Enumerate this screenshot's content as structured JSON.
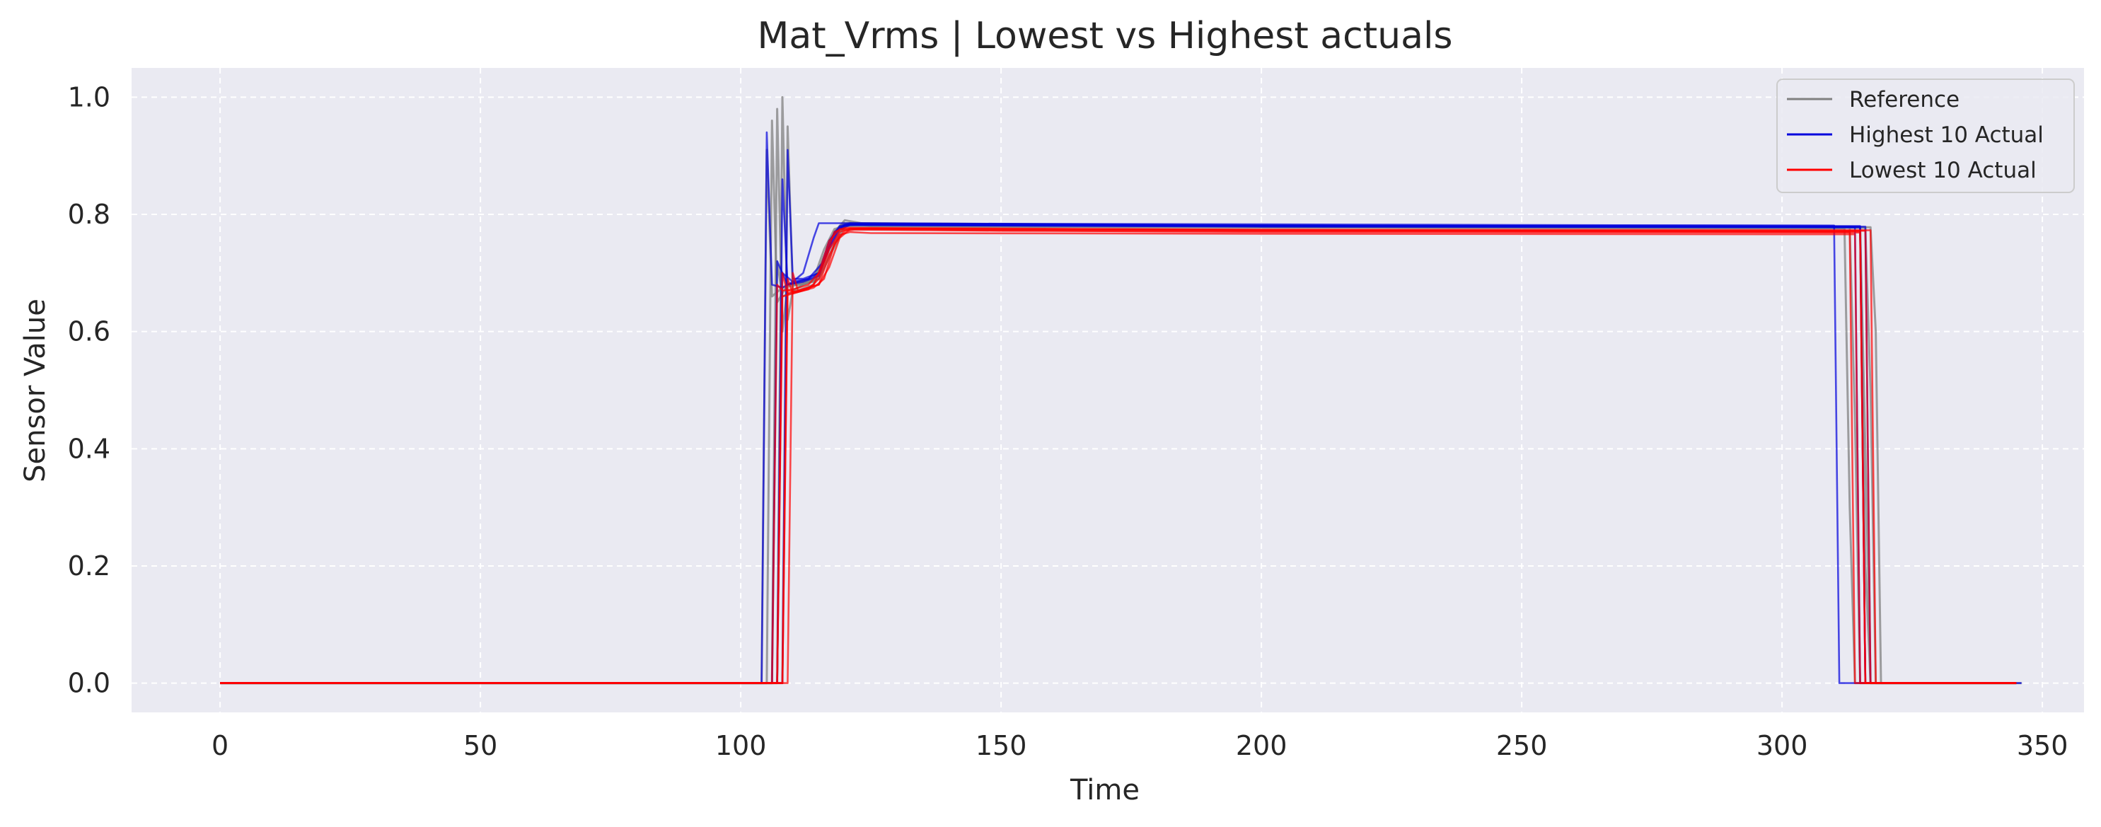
{
  "chart_data": {
    "type": "line",
    "title": "Mat_Vrms | Lowest vs Highest actuals",
    "xlabel": "Time",
    "ylabel": "Sensor Value",
    "xlim": [
      -17,
      358
    ],
    "ylim": [
      -0.05,
      1.05
    ],
    "xticks": [
      0,
      50,
      100,
      150,
      200,
      250,
      300,
      350
    ],
    "yticks": [
      0.0,
      0.2,
      0.4,
      0.6,
      0.8,
      1.0
    ],
    "grid": true,
    "legend_position": "top-right",
    "colors": {
      "plot_background": "#eaeaf2",
      "grid": "#ffffff",
      "reference": "#808080",
      "highest": "#0000dd",
      "lowest": "#ff0000"
    },
    "legend": [
      {
        "label": "Reference",
        "color": "#808080"
      },
      {
        "label": "Highest 10 Actual",
        "color": "#0000dd"
      },
      {
        "label": "Lowest 10 Actual",
        "color": "#ff0000"
      }
    ],
    "series": [
      {
        "name": "Reference",
        "group": "reference",
        "color": "#808080",
        "x": [
          0,
          106,
          107,
          108,
          109,
          111,
          114,
          116,
          118,
          120,
          125,
          150,
          200,
          250,
          300,
          315,
          316,
          317,
          345
        ],
        "y": [
          0,
          0,
          0.98,
          0.6,
          0.68,
          0.68,
          0.69,
          0.72,
          0.77,
          0.79,
          0.782,
          0.781,
          0.78,
          0.779,
          0.778,
          0.778,
          0.4,
          0,
          0
        ]
      },
      {
        "name": "",
        "group": "reference",
        "color": "#808080",
        "x": [
          0,
          107,
          108,
          109,
          110,
          112,
          115,
          117,
          119,
          121,
          125,
          200,
          300,
          316,
          317,
          318,
          345
        ],
        "y": [
          0,
          0,
          1.0,
          0.62,
          0.67,
          0.68,
          0.69,
          0.73,
          0.77,
          0.785,
          0.78,
          0.778,
          0.777,
          0.777,
          0.5,
          0,
          0
        ]
      },
      {
        "name": "",
        "group": "reference",
        "color": "#808080",
        "x": [
          0,
          105,
          106,
          107,
          109,
          112,
          114,
          116,
          118,
          120,
          150,
          250,
          312,
          313,
          314,
          345
        ],
        "y": [
          0,
          0,
          0.96,
          0.65,
          0.68,
          0.685,
          0.69,
          0.74,
          0.775,
          0.78,
          0.779,
          0.777,
          0.776,
          0.3,
          0,
          0
        ]
      },
      {
        "name": "",
        "group": "reference",
        "color": "#808080",
        "x": [
          0,
          104,
          105,
          106,
          108,
          111,
          114,
          117,
          119,
          121,
          200,
          313,
          314,
          315,
          346
        ],
        "y": [
          0,
          0,
          0.91,
          0.66,
          0.675,
          0.68,
          0.685,
          0.75,
          0.78,
          0.785,
          0.781,
          0.779,
          0.45,
          0,
          0
        ]
      },
      {
        "name": "",
        "group": "reference",
        "color": "#808080",
        "x": [
          0,
          108,
          109,
          110,
          112,
          115,
          118,
          120,
          122,
          200,
          317,
          318,
          319,
          345
        ],
        "y": [
          0,
          0,
          0.95,
          0.67,
          0.68,
          0.69,
          0.745,
          0.78,
          0.782,
          0.78,
          0.778,
          0.6,
          0,
          0
        ]
      },
      {
        "name": "",
        "group": "reference",
        "color": "#808080",
        "x": [
          0,
          106,
          107,
          108,
          111,
          114,
          116,
          118,
          120,
          250,
          315,
          316,
          317,
          345
        ],
        "y": [
          0,
          0,
          0.72,
          0.66,
          0.67,
          0.68,
          0.72,
          0.77,
          0.785,
          0.779,
          0.778,
          0.2,
          0,
          0
        ]
      },
      {
        "name": "Highest 10 Actual",
        "group": "highest",
        "color": "#0000dd",
        "x": [
          0,
          104,
          105,
          106,
          108,
          110,
          112,
          114,
          115,
          117,
          120,
          150,
          200,
          250,
          310,
          311,
          345
        ],
        "y": [
          0,
          0,
          0.94,
          0.68,
          0.675,
          0.685,
          0.7,
          0.76,
          0.785,
          0.785,
          0.785,
          0.784,
          0.783,
          0.782,
          0.781,
          0,
          0
        ]
      },
      {
        "name": "",
        "group": "highest",
        "color": "#0000dd",
        "x": [
          0,
          107,
          108,
          109,
          111,
          113,
          115,
          117,
          119,
          121,
          200,
          315,
          316,
          345
        ],
        "y": [
          0,
          0,
          0.86,
          0.68,
          0.685,
          0.69,
          0.7,
          0.755,
          0.78,
          0.785,
          0.781,
          0.78,
          0,
          0
        ]
      },
      {
        "name": "",
        "group": "highest",
        "color": "#0000dd",
        "x": [
          0,
          108,
          109,
          110,
          112,
          115,
          117,
          119,
          121,
          200,
          316,
          317,
          346
        ],
        "y": [
          0,
          0,
          0.91,
          0.69,
          0.69,
          0.7,
          0.74,
          0.775,
          0.782,
          0.78,
          0.779,
          0,
          0
        ]
      },
      {
        "name": "",
        "group": "highest",
        "color": "#0000dd",
        "x": [
          0,
          106,
          107,
          109,
          112,
          115,
          117,
          119,
          121,
          250,
          314,
          315,
          345
        ],
        "y": [
          0,
          0,
          0.72,
          0.68,
          0.685,
          0.695,
          0.745,
          0.778,
          0.783,
          0.779,
          0.778,
          0,
          0
        ]
      },
      {
        "name": "",
        "group": "highest",
        "color": "#0000dd",
        "x": [
          0,
          107,
          108,
          110,
          113,
          116,
          118,
          120,
          200,
          315,
          316,
          345
        ],
        "y": [
          0,
          0,
          0.7,
          0.685,
          0.69,
          0.72,
          0.77,
          0.782,
          0.779,
          0.778,
          0,
          0
        ]
      },
      {
        "name": "Lowest 10 Actual",
        "group": "lowest",
        "color": "#ff0000",
        "x": [
          0,
          107,
          108,
          109,
          111,
          113,
          115,
          117,
          119,
          121,
          125,
          200,
          300,
          314,
          315,
          345
        ],
        "y": [
          0,
          0,
          0.7,
          0.665,
          0.67,
          0.675,
          0.68,
          0.73,
          0.765,
          0.77,
          0.768,
          0.767,
          0.766,
          0.766,
          0,
          0
        ]
      },
      {
        "name": "",
        "group": "lowest",
        "color": "#ff0000",
        "x": [
          0,
          108,
          109,
          110,
          112,
          114,
          116,
          118,
          120,
          122,
          200,
          315,
          316,
          345
        ],
        "y": [
          0,
          0,
          0.69,
          0.665,
          0.67,
          0.675,
          0.69,
          0.75,
          0.772,
          0.774,
          0.77,
          0.769,
          0,
          0
        ]
      },
      {
        "name": "",
        "group": "lowest",
        "color": "#ff0000",
        "x": [
          0,
          106,
          107,
          108,
          110,
          113,
          115,
          117,
          119,
          150,
          250,
          313,
          314,
          345
        ],
        "y": [
          0,
          0,
          0.68,
          0.67,
          0.672,
          0.68,
          0.7,
          0.755,
          0.775,
          0.772,
          0.771,
          0.77,
          0,
          0
        ]
      },
      {
        "name": "",
        "group": "lowest",
        "color": "#ff0000",
        "x": [
          0,
          109,
          110,
          111,
          113,
          115,
          117,
          119,
          121,
          123,
          200,
          316,
          317,
          345
        ],
        "y": [
          0,
          0,
          0.7,
          0.67,
          0.675,
          0.68,
          0.71,
          0.76,
          0.775,
          0.776,
          0.773,
          0.772,
          0,
          0
        ]
      },
      {
        "name": "",
        "group": "lowest",
        "color": "#ff0000",
        "x": [
          0,
          107,
          108,
          110,
          112,
          114,
          116,
          118,
          120,
          200,
          317,
          318,
          345
        ],
        "y": [
          0,
          0,
          0.66,
          0.665,
          0.67,
          0.68,
          0.72,
          0.77,
          0.777,
          0.774,
          0.773,
          0,
          0
        ]
      },
      {
        "name": "",
        "group": "lowest",
        "color": "#ff0000",
        "x": [
          0,
          108,
          109,
          111,
          113,
          115,
          117,
          119,
          121,
          250,
          315,
          316,
          345
        ],
        "y": [
          0,
          0,
          0.67,
          0.668,
          0.672,
          0.69,
          0.74,
          0.77,
          0.776,
          0.772,
          0.771,
          0,
          0
        ]
      }
    ]
  }
}
